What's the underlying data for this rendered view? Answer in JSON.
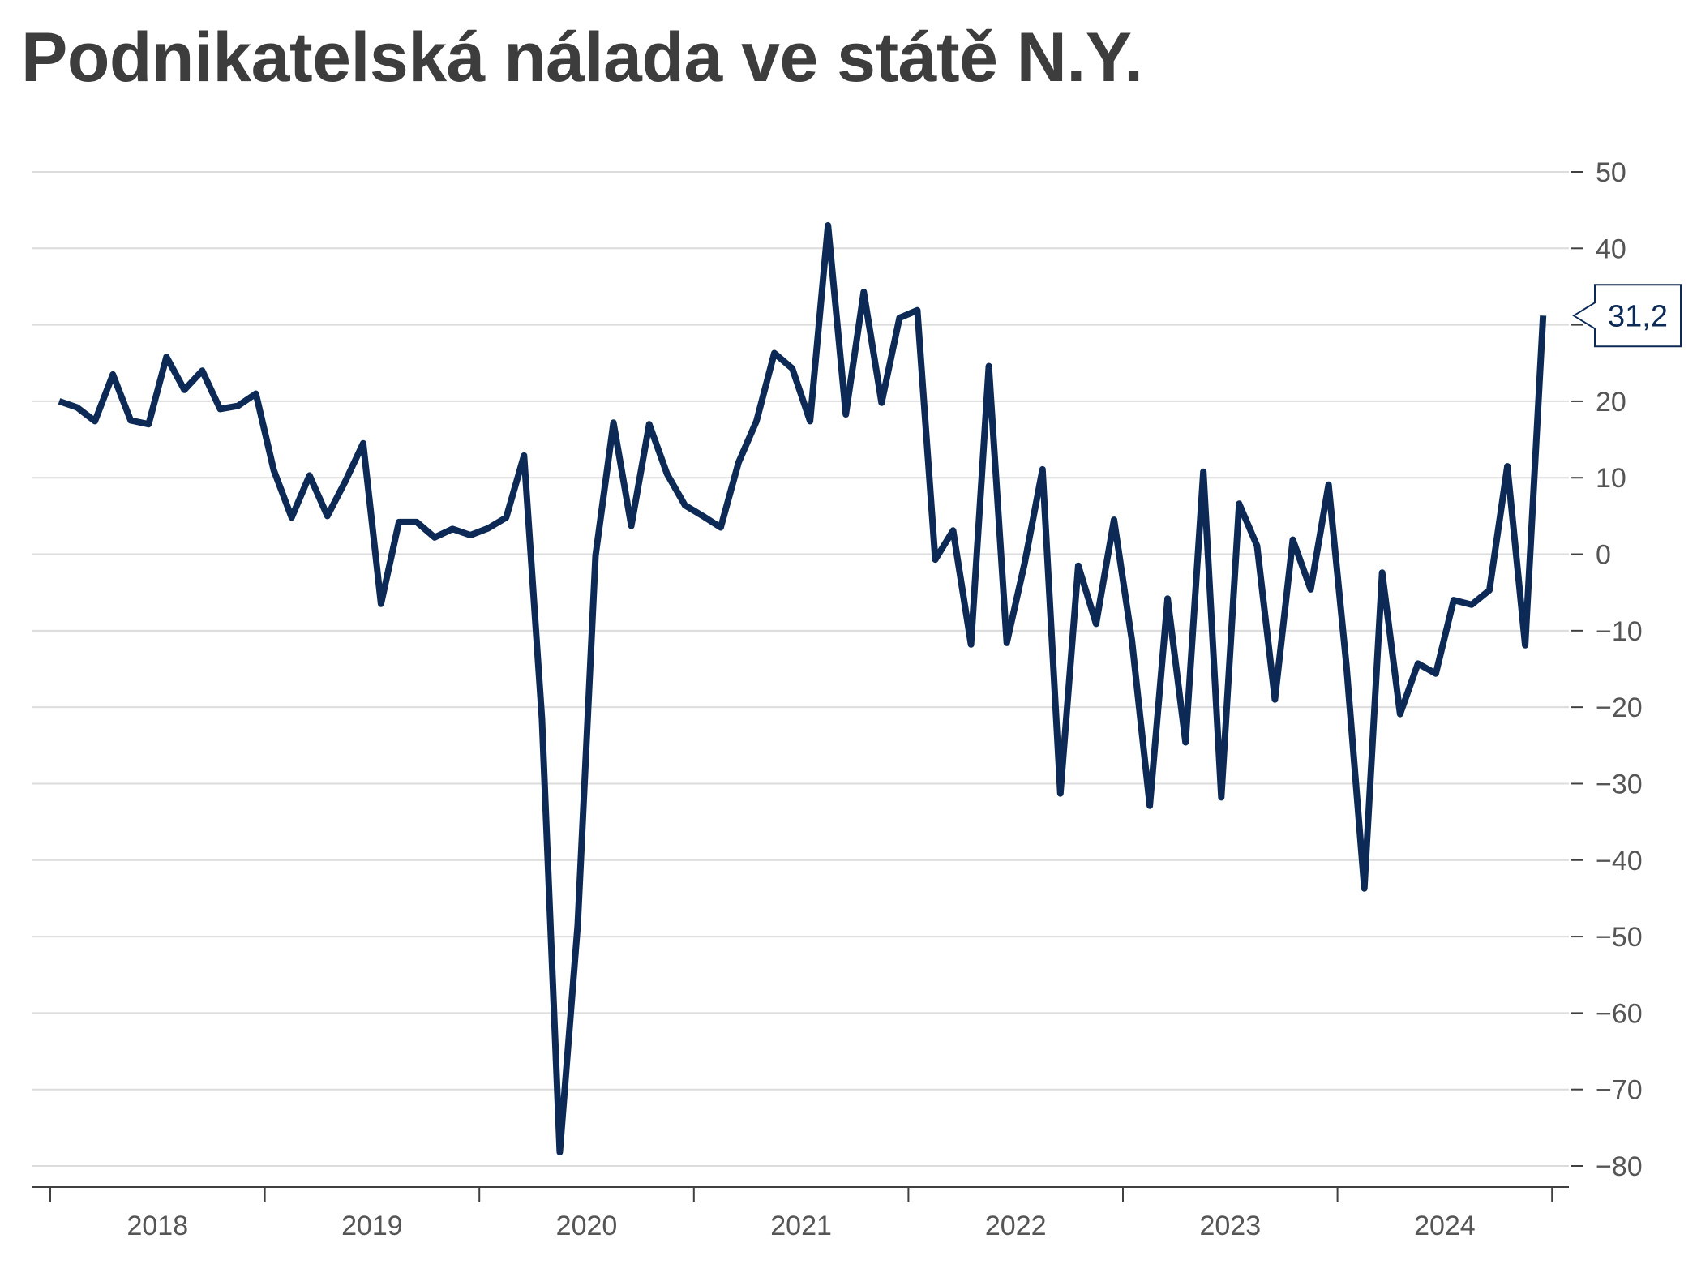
{
  "title": "Podnikatelská nálada ve státě N.Y.",
  "colors": {
    "series": "#0c2a55",
    "grid": "#dcdcdc",
    "title": "#3d3d3d"
  },
  "chart_data": {
    "type": "line",
    "title": "Podnikatelská nálada ve státě N.Y.",
    "xlabel": "",
    "ylabel": "",
    "ylim": [
      -80,
      50
    ],
    "y_ticks": [
      "50",
      "40",
      "30",
      "20",
      "10",
      "0",
      "-10",
      "-20",
      "-30",
      "-40",
      "-50",
      "-60",
      "-70",
      "-80"
    ],
    "x_tick_labels": [
      "2018",
      "2019",
      "2020",
      "2021",
      "2022",
      "2023",
      "2024"
    ],
    "grid": true,
    "y_axis_side": "right",
    "last_value_label": "31,2",
    "series": [
      {
        "color": "#0c2a55",
        "x": [
          "2018-01",
          "2018-02",
          "2018-03",
          "2018-04",
          "2018-05",
          "2018-06",
          "2018-07",
          "2018-08",
          "2018-09",
          "2018-10",
          "2018-11",
          "2018-12",
          "2019-01",
          "2019-02",
          "2019-03",
          "2019-04",
          "2019-05",
          "2019-06",
          "2019-07",
          "2019-08",
          "2019-09",
          "2019-10",
          "2019-11",
          "2019-12",
          "2020-01",
          "2020-02",
          "2020-03",
          "2020-04",
          "2020-05",
          "2020-06",
          "2020-07",
          "2020-08",
          "2020-09",
          "2020-10",
          "2020-11",
          "2020-12",
          "2021-01",
          "2021-02",
          "2021-03",
          "2021-04",
          "2021-05",
          "2021-06",
          "2021-07",
          "2021-08",
          "2021-09",
          "2021-10",
          "2021-11",
          "2021-12",
          "2022-01",
          "2022-02",
          "2022-03",
          "2022-04",
          "2022-05",
          "2022-06",
          "2022-07",
          "2022-08",
          "2022-09",
          "2022-10",
          "2022-11",
          "2022-12",
          "2023-01",
          "2023-02",
          "2023-03",
          "2023-04",
          "2023-05",
          "2023-06",
          "2023-07",
          "2023-08",
          "2023-09",
          "2023-10",
          "2023-11",
          "2023-12",
          "2024-01",
          "2024-02",
          "2024-03",
          "2024-04",
          "2024-05",
          "2024-06",
          "2024-07",
          "2024-08",
          "2024-09",
          "2024-10",
          "2024-11",
          "2024-12"
        ],
        "values": [
          20.0,
          19.2,
          17.4,
          23.5,
          17.5,
          17.0,
          25.8,
          21.5,
          24.0,
          19.0,
          19.4,
          21.0,
          11.0,
          4.8,
          10.3,
          5.0,
          9.5,
          14.5,
          -6.5,
          4.2,
          4.2,
          2.2,
          3.3,
          2.5,
          3.4,
          4.8,
          12.9,
          -21.5,
          -78.2,
          -48.5,
          -0.2,
          17.2,
          3.7,
          17.0,
          10.5,
          6.4,
          5.0,
          3.5,
          12.0,
          17.4,
          26.3,
          24.3,
          17.4,
          43.0,
          18.3,
          34.3,
          19.8,
          30.9,
          31.9,
          -0.7,
          3.1,
          -11.8,
          24.6,
          -11.6,
          -1.2,
          11.1,
          -31.3,
          -1.5,
          -9.1,
          4.5,
          -11.2,
          -32.9,
          -5.8,
          -24.6,
          10.8,
          -31.8,
          6.6,
          1.1,
          -19.0,
          1.9,
          -4.6,
          9.1,
          -14.5,
          -43.7,
          -2.4,
          -20.9,
          -14.3,
          -15.6,
          -6.0,
          -6.6,
          -4.7,
          11.5,
          -11.9,
          31.2
        ]
      }
    ]
  }
}
